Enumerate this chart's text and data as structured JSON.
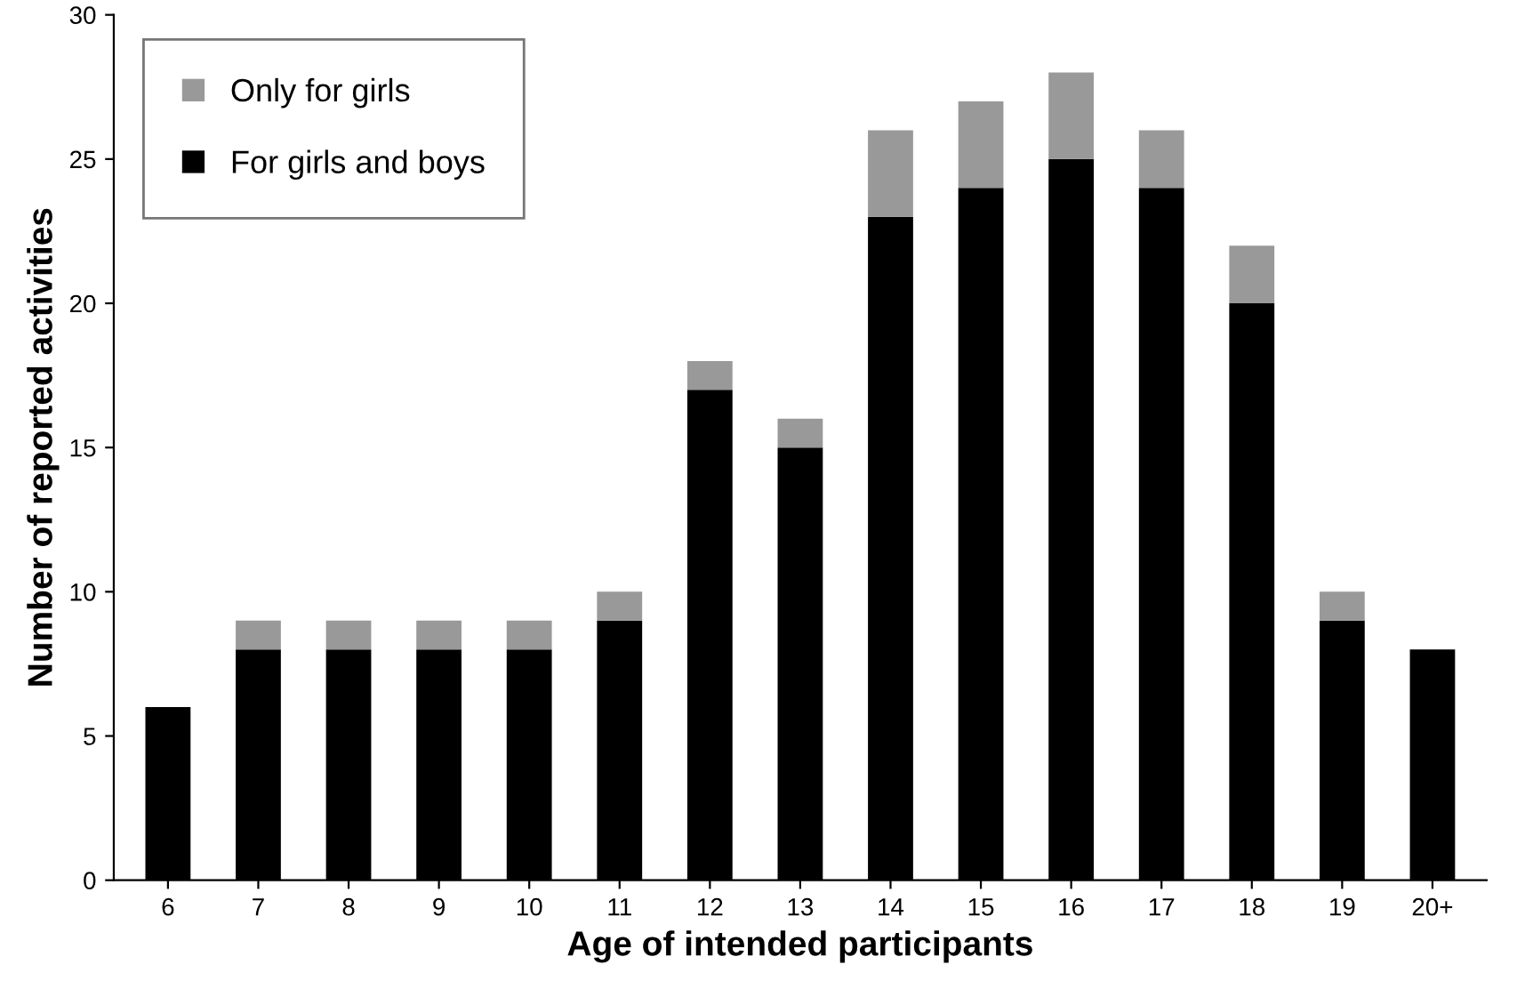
{
  "chart_data": {
    "type": "bar",
    "stacked": true,
    "xlabel": "Age of intended participants",
    "ylabel": "Number of reported activities",
    "categories": [
      "6",
      "7",
      "8",
      "9",
      "10",
      "11",
      "12",
      "13",
      "14",
      "15",
      "16",
      "17",
      "18",
      "19",
      "20+"
    ],
    "series": [
      {
        "name": "For girls and boys",
        "color": "#000000",
        "values": [
          6,
          8,
          8,
          8,
          8,
          9,
          17,
          15,
          23,
          24,
          25,
          24,
          20,
          9,
          8
        ]
      },
      {
        "name": "Only for girls",
        "color": "#999999",
        "values": [
          0,
          1,
          1,
          1,
          1,
          1,
          1,
          1,
          3,
          3,
          3,
          2,
          2,
          1,
          0
        ]
      }
    ],
    "ylim": [
      0,
      30
    ],
    "yticks": [
      0,
      5,
      10,
      15,
      20,
      25,
      30
    ],
    "grid": false,
    "legend": "top left"
  }
}
